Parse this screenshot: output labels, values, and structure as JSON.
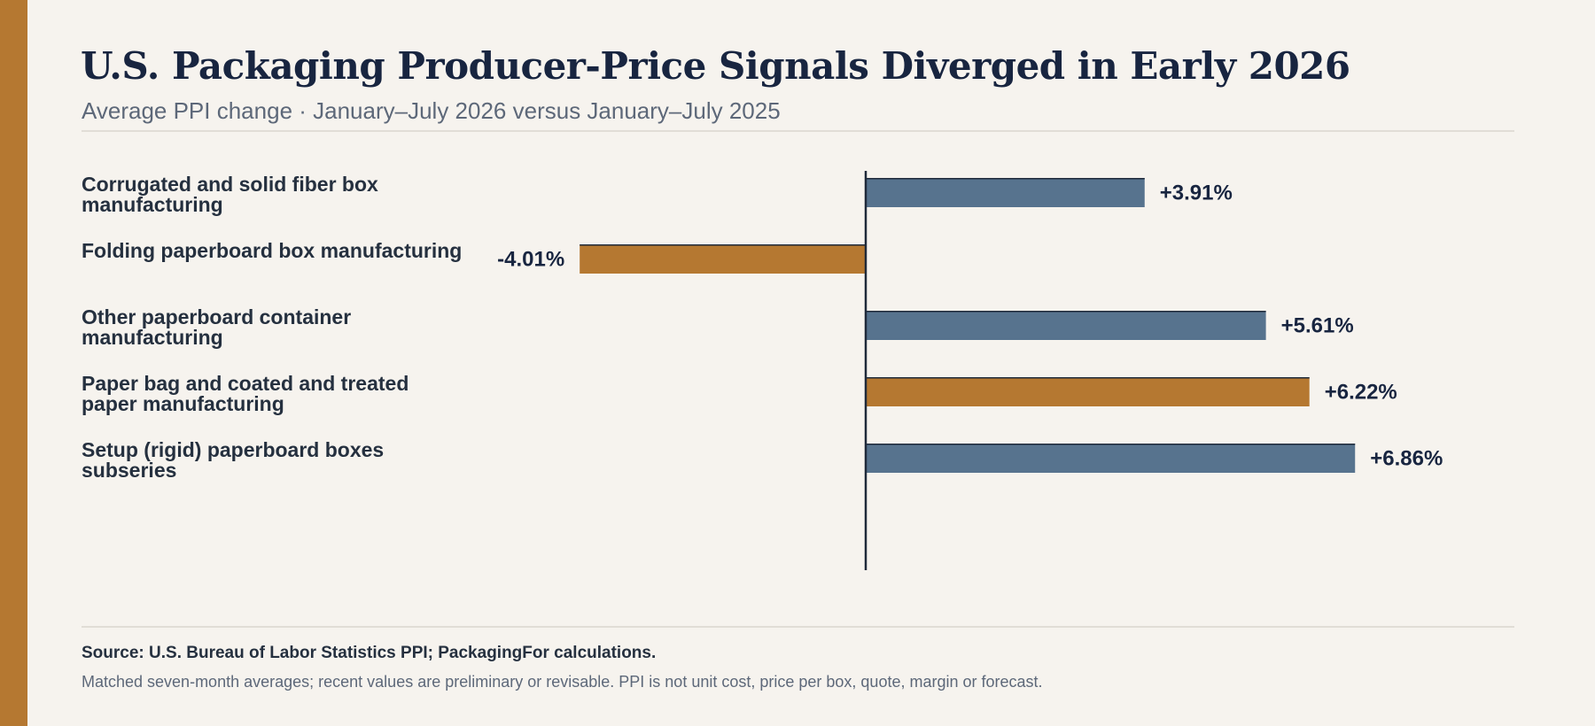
{
  "colors": {
    "accent": "#b57831",
    "background": "#f6f3ee",
    "title": "#182540",
    "bar_blue": "#57738e",
    "bar_orange": "#b57831",
    "axis": "#1f2a3a"
  },
  "header": {
    "title": "U.S. Packaging Producer-Price Signals Diverged in Early 2026",
    "subtitle": "Average PPI change · January–July 2026 versus January–July 2025"
  },
  "chart_data": {
    "type": "bar",
    "orientation": "horizontal",
    "categories": [
      "Corrugated and solid fiber box manufacturing",
      "Folding paperboard box manufacturing",
      "Other paperboard container manufacturing",
      "Paper bag and coated and treated paper manufacturing",
      "Setup (rigid) paperboard boxes subseries"
    ],
    "values": [
      3.91,
      -4.01,
      5.61,
      6.22,
      6.86
    ],
    "value_labels": [
      "+3.91%",
      "-4.01%",
      "+5.61%",
      "+6.22%",
      "+6.86%"
    ],
    "bar_colors": [
      "#57738e",
      "#b57831",
      "#57738e",
      "#b57831",
      "#57738e"
    ],
    "xlim": [
      -11,
      11
    ],
    "grid": false,
    "legend": "none"
  },
  "footer": {
    "source": "Source: U.S. Bureau of Labor Statistics PPI; PackagingFor calculations.",
    "note": "Matched seven-month averages; recent values are preliminary or revisable. PPI is not unit cost, price per box, quote, margin or forecast."
  }
}
